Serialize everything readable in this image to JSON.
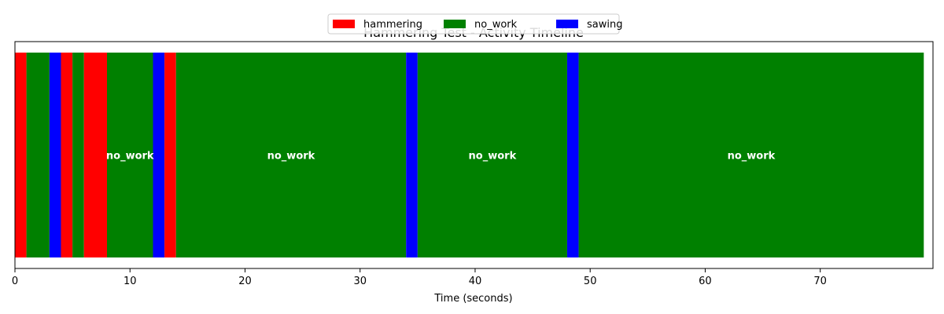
{
  "chart_data": {
    "type": "bar",
    "orientation": "horizontal-timeline",
    "title": "Hammering Test - Activity Timeline",
    "xlabel": "Time (seconds)",
    "ylabel": "",
    "xlim": [
      0,
      79.8
    ],
    "xticks": [
      0,
      10,
      20,
      30,
      40,
      50,
      60,
      70
    ],
    "legend": {
      "placement": "upper center",
      "entries": [
        {
          "name": "hammering",
          "color": "#ff0000"
        },
        {
          "name": "no_work",
          "color": "#008000"
        },
        {
          "name": "sawing",
          "color": "#0000ff"
        }
      ]
    },
    "segments": [
      {
        "activity": "hammering",
        "start": 0,
        "end": 1
      },
      {
        "activity": "no_work",
        "start": 1,
        "end": 3
      },
      {
        "activity": "sawing",
        "start": 3,
        "end": 4
      },
      {
        "activity": "hammering",
        "start": 4,
        "end": 5
      },
      {
        "activity": "no_work",
        "start": 5,
        "end": 6
      },
      {
        "activity": "hammering",
        "start": 6,
        "end": 8
      },
      {
        "activity": "no_work",
        "start": 8,
        "end": 12,
        "label": "no_work"
      },
      {
        "activity": "sawing",
        "start": 12,
        "end": 13
      },
      {
        "activity": "hammering",
        "start": 13,
        "end": 14
      },
      {
        "activity": "no_work",
        "start": 14,
        "end": 34,
        "label": "no_work"
      },
      {
        "activity": "sawing",
        "start": 34,
        "end": 35
      },
      {
        "activity": "no_work",
        "start": 35,
        "end": 48,
        "label": "no_work"
      },
      {
        "activity": "sawing",
        "start": 48,
        "end": 49
      },
      {
        "activity": "no_work",
        "start": 49,
        "end": 79,
        "label": "no_work"
      }
    ]
  }
}
